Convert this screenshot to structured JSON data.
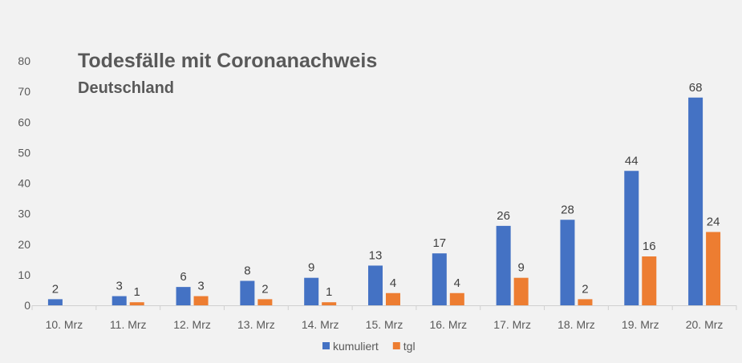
{
  "chart_data": {
    "type": "bar",
    "title": "Todesfälle mit Coronanachweis",
    "subtitle": "Deutschland",
    "categories": [
      "10. Mrz",
      "11. Mrz",
      "12. Mrz",
      "13. Mrz",
      "14. Mrz",
      "15. Mrz",
      "16. Mrz",
      "17. Mrz",
      "18. Mrz",
      "19. Mrz",
      "20. Mrz"
    ],
    "series": [
      {
        "name": "kumuliert",
        "color": "#4472c4",
        "values": [
          2,
          3,
          6,
          8,
          9,
          13,
          17,
          26,
          28,
          44,
          68
        ]
      },
      {
        "name": "tgl",
        "color": "#ed7d31",
        "values": [
          null,
          1,
          3,
          2,
          1,
          4,
          4,
          9,
          2,
          16,
          24
        ]
      }
    ],
    "ylim": [
      0,
      80
    ],
    "yticks": [
      0,
      10,
      20,
      30,
      40,
      50,
      60,
      70,
      80
    ],
    "grid": false,
    "legend": "bottom"
  }
}
